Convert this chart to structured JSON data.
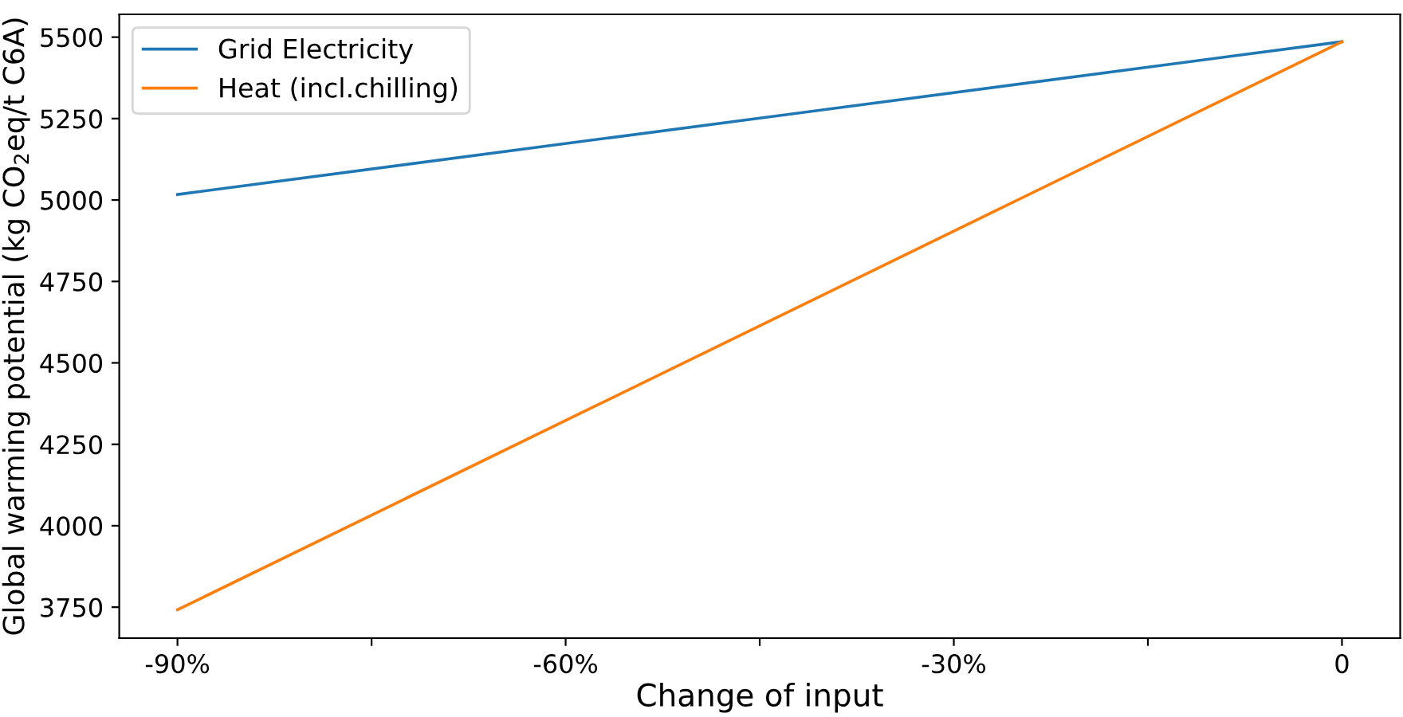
{
  "chart_data": {
    "type": "line",
    "xlabel": "Change of input",
    "ylabel": "Global warming potential (kg CO$_{2}$eq/t C6A)",
    "x": [
      -90,
      0
    ],
    "series": [
      {
        "name": "Grid Electricity",
        "color": "#1f77b4",
        "values": [
          5017,
          5486
        ]
      },
      {
        "name": "Heat (incl.chilling)",
        "color": "#ff7f0e",
        "values": [
          3742,
          5486
        ]
      }
    ],
    "xlim": [
      -94.5,
      4.5
    ],
    "xticks": [
      {
        "value": -90,
        "label": "-90%"
      },
      {
        "value": -75,
        "label": null
      },
      {
        "value": -60,
        "label": "-60%"
      },
      {
        "value": -45,
        "label": null
      },
      {
        "value": -30,
        "label": "-30%"
      },
      {
        "value": -15,
        "label": null
      },
      0
    ],
    "ylim": [
      3655,
      5570
    ],
    "yticks": [
      3750,
      4000,
      4250,
      4500,
      4750,
      5000,
      5250,
      5500
    ],
    "legend": "top left",
    "grid": false,
    "marker": "none",
    "line_style": "solid"
  }
}
